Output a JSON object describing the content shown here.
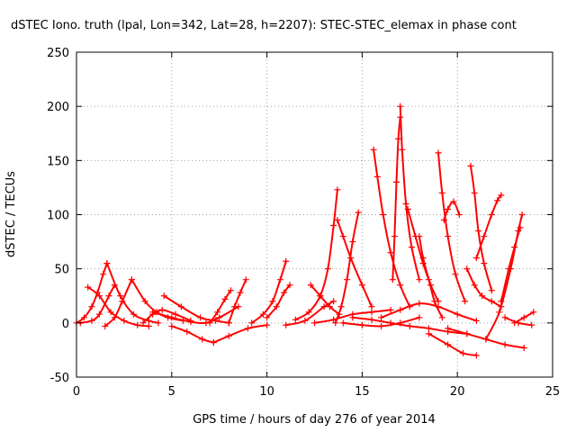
{
  "chart_data": {
    "type": "scatter",
    "title": "dSTEC Iono. truth (lpal, Lon=342, Lat=28, h=2207): STEC-STEC_elemax in phase cont",
    "xlabel": "GPS time / hours of day 276 of year 2014",
    "ylabel": "dSTEC  / TECUs",
    "xlim": [
      0,
      25
    ],
    "ylim": [
      -50,
      250
    ],
    "xticks": [
      0,
      5,
      10,
      15,
      20,
      25
    ],
    "yticks": [
      -50,
      0,
      50,
      100,
      150,
      200,
      250
    ],
    "xtick_labels": [
      "0",
      "5",
      "10",
      "15",
      "20",
      "25"
    ],
    "ytick_labels": [
      "-50",
      "0",
      "50",
      "100",
      "150",
      "200",
      "250"
    ],
    "grid": true,
    "marker": "plus",
    "color": "#ff0000",
    "series": [
      {
        "x": [
          0.0,
          0.4,
          0.8,
          1.1,
          1.4,
          1.6
        ],
        "y": [
          0,
          5,
          15,
          28,
          45,
          55
        ]
      },
      {
        "x": [
          1.6,
          2.3,
          3.0,
          3.8,
          4.3
        ],
        "y": [
          55,
          25,
          8,
          2,
          0
        ]
      },
      {
        "x": [
          0.6,
          1.2,
          1.8,
          2.5,
          3.2,
          3.8
        ],
        "y": [
          33,
          25,
          10,
          2,
          -2,
          -3
        ]
      },
      {
        "x": [
          0.2,
          0.8,
          1.2,
          1.7,
          2.0
        ],
        "y": [
          0,
          2,
          8,
          25,
          35
        ]
      },
      {
        "x": [
          1.5,
          2.0,
          2.4,
          2.9
        ],
        "y": [
          -3,
          5,
          20,
          40
        ]
      },
      {
        "x": [
          2.9,
          3.6,
          4.2,
          4.8,
          5.6
        ],
        "y": [
          40,
          20,
          10,
          5,
          2
        ]
      },
      {
        "x": [
          3.5,
          4.0,
          4.5,
          5.2,
          6.0
        ],
        "y": [
          0,
          8,
          12,
          8,
          2
        ]
      },
      {
        "x": [
          4.6,
          5.5,
          6.5,
          7.3,
          8.0
        ],
        "y": [
          25,
          15,
          5,
          2,
          0
        ]
      },
      {
        "x": [
          4.0,
          5.0,
          6.0,
          6.8,
          7.5,
          8.5
        ],
        "y": [
          10,
          5,
          1,
          0,
          5,
          15
        ]
      },
      {
        "x": [
          5.0,
          5.8,
          6.6,
          7.2
        ],
        "y": [
          -3,
          -8,
          -15,
          -18
        ]
      },
      {
        "x": [
          7.2,
          8.0,
          9.0,
          10.0
        ],
        "y": [
          -18,
          -12,
          -5,
          -2
        ]
      },
      {
        "x": [
          7.0,
          7.4,
          7.8,
          8.1
        ],
        "y": [
          0,
          10,
          22,
          30
        ]
      },
      {
        "x": [
          8.0,
          8.3,
          8.6,
          8.9
        ],
        "y": [
          0,
          15,
          28,
          40
        ]
      },
      {
        "x": [
          9.2,
          9.8,
          10.3,
          10.7,
          11.0
        ],
        "y": [
          0,
          8,
          20,
          40,
          57
        ]
      },
      {
        "x": [
          10.0,
          10.5,
          10.9,
          11.2
        ],
        "y": [
          5,
          15,
          28,
          35
        ]
      },
      {
        "x": [
          11.0,
          12.0,
          13.0,
          13.5
        ],
        "y": [
          -2,
          2,
          15,
          20
        ]
      },
      {
        "x": [
          11.5,
          12.2,
          12.8,
          13.2,
          13.5,
          13.7
        ],
        "y": [
          3,
          10,
          25,
          50,
          90,
          123
        ]
      },
      {
        "x": [
          12.3,
          12.8,
          13.3,
          13.8
        ],
        "y": [
          35,
          25,
          15,
          8
        ]
      },
      {
        "x": [
          13.7,
          14.0,
          14.4,
          15.0,
          15.5
        ],
        "y": [
          95,
          80,
          60,
          35,
          15
        ]
      },
      {
        "x": [
          13.6,
          13.9,
          14.2,
          14.5,
          14.8
        ],
        "y": [
          0,
          15,
          40,
          75,
          102
        ]
      },
      {
        "x": [
          15.6,
          15.8,
          16.1,
          16.5,
          17.0,
          17.5
        ],
        "y": [
          160,
          135,
          100,
          65,
          35,
          15
        ]
      },
      {
        "x": [
          16.6,
          16.7,
          16.8,
          16.9,
          17.0
        ],
        "y": [
          40,
          80,
          130,
          170,
          190
        ]
      },
      {
        "x": [
          17.0,
          17.1,
          17.3,
          17.6,
          18.0
        ],
        "y": [
          200,
          160,
          110,
          70,
          40
        ]
      },
      {
        "x": [
          17.4,
          17.8,
          18.2,
          18.6,
          19.0
        ],
        "y": [
          105,
          80,
          55,
          35,
          20
        ]
      },
      {
        "x": [
          18.0,
          18.2,
          18.5,
          18.8,
          19.2
        ],
        "y": [
          80,
          60,
          40,
          20,
          5
        ]
      },
      {
        "x": [
          19.0,
          19.2,
          19.5,
          19.9,
          20.4
        ],
        "y": [
          157,
          120,
          80,
          45,
          20
        ]
      },
      {
        "x": [
          19.3,
          19.5,
          19.8,
          20.1
        ],
        "y": [
          95,
          105,
          112,
          100
        ]
      },
      {
        "x": [
          20.7,
          20.9,
          21.1,
          21.4,
          21.8
        ],
        "y": [
          145,
          120,
          85,
          55,
          30
        ]
      },
      {
        "x": [
          20.5,
          20.9,
          21.3,
          21.8,
          22.3
        ],
        "y": [
          50,
          35,
          25,
          20,
          15
        ]
      },
      {
        "x": [
          21.0,
          21.4,
          21.8,
          22.1,
          22.3
        ],
        "y": [
          60,
          80,
          100,
          113,
          118
        ]
      },
      {
        "x": [
          21.5,
          22.2,
          22.8,
          23.2,
          23.4
        ],
        "y": [
          -15,
          10,
          50,
          85,
          100
        ]
      },
      {
        "x": [
          22.3,
          22.7,
          23.0,
          23.3
        ],
        "y": [
          20,
          50,
          70,
          88
        ]
      },
      {
        "x": [
          23.0,
          23.5,
          24.0
        ],
        "y": [
          0,
          5,
          10
        ]
      },
      {
        "x": [
          22.5,
          23.2,
          23.9
        ],
        "y": [
          5,
          0,
          -2
        ]
      },
      {
        "x": [
          18.5,
          19.5,
          20.3,
          21.0
        ],
        "y": [
          -10,
          -20,
          -28,
          -30
        ]
      },
      {
        "x": [
          19.5,
          20.5,
          21.5,
          22.5,
          23.5
        ],
        "y": [
          -5,
          -10,
          -15,
          -20,
          -23
        ]
      },
      {
        "x": [
          14.0,
          15.0,
          16.0,
          17.0,
          18.0
        ],
        "y": [
          0,
          -2,
          -3,
          0,
          5
        ]
      },
      {
        "x": [
          14.5,
          15.5,
          16.5,
          17.5,
          18.5,
          19.5,
          20.5
        ],
        "y": [
          5,
          3,
          0,
          -3,
          -5,
          -8,
          -10
        ]
      },
      {
        "x": [
          12.5,
          13.5,
          14.5,
          15.5,
          16.5
        ],
        "y": [
          0,
          3,
          8,
          10,
          12
        ]
      },
      {
        "x": [
          16.0,
          17.0,
          18.0,
          19.0,
          20.0,
          21.0
        ],
        "y": [
          5,
          12,
          18,
          15,
          8,
          2
        ]
      }
    ]
  }
}
